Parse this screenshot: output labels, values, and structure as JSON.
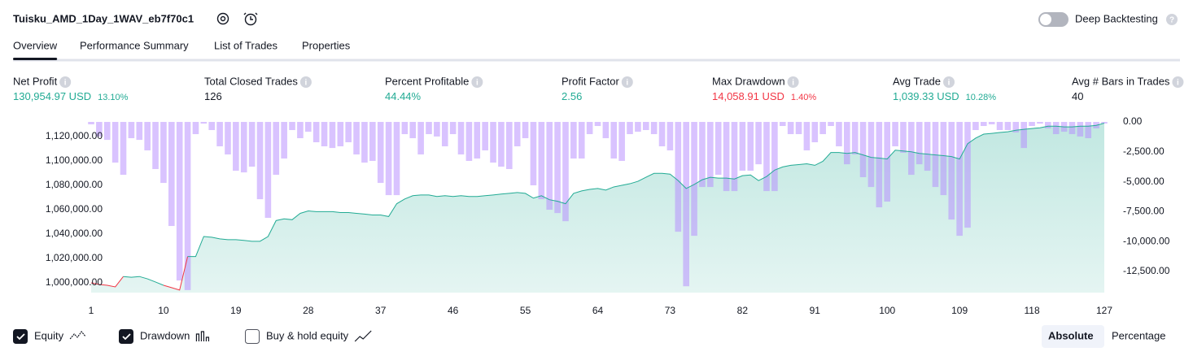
{
  "header": {
    "title": "Tuisku_AMD_1Day_1WAV_eb7f70c1",
    "deep_backtesting": "Deep Backtesting",
    "deep_backtesting_on": false
  },
  "tabs": [
    "Overview",
    "Performance Summary",
    "List of Trades",
    "Properties"
  ],
  "active_tab": 0,
  "stats": [
    {
      "label": "Net Profit",
      "value": "130,954.97 USD",
      "percent": "13.10%",
      "tone": "positive"
    },
    {
      "label": "Total Closed Trades",
      "value": "126",
      "tone": "neutral"
    },
    {
      "label": "Percent Profitable",
      "value": "44.44%",
      "tone": "positive"
    },
    {
      "label": "Profit Factor",
      "value": "2.56",
      "tone": "positive"
    },
    {
      "label": "Max Drawdown",
      "value": "14,058.91 USD",
      "percent": "1.40%",
      "tone": "negative"
    },
    {
      "label": "Avg Trade",
      "value": "1,039.33 USD",
      "percent": "10.28%",
      "tone": "positive"
    },
    {
      "label": "Avg # Bars in Trades",
      "value": "40",
      "tone": "neutral"
    }
  ],
  "chart_data": {
    "type": "line",
    "x": [
      1,
      2,
      3,
      4,
      5,
      6,
      7,
      8,
      9,
      10,
      11,
      12,
      13,
      14,
      15,
      16,
      17,
      18,
      19,
      20,
      21,
      22,
      23,
      24,
      25,
      26,
      27,
      28,
      29,
      30,
      31,
      32,
      33,
      34,
      35,
      36,
      37,
      38,
      39,
      40,
      41,
      42,
      43,
      44,
      45,
      46,
      47,
      48,
      49,
      50,
      51,
      52,
      53,
      54,
      55,
      56,
      57,
      58,
      59,
      60,
      61,
      62,
      63,
      64,
      65,
      66,
      67,
      68,
      69,
      70,
      71,
      72,
      73,
      74,
      75,
      76,
      77,
      78,
      79,
      80,
      81,
      82,
      83,
      84,
      85,
      86,
      87,
      88,
      89,
      90,
      91,
      92,
      93,
      94,
      95,
      96,
      97,
      98,
      99,
      100,
      101,
      102,
      103,
      104,
      105,
      106,
      107,
      108,
      109,
      110,
      111,
      112,
      113,
      114,
      115,
      116,
      117,
      118,
      119,
      120,
      121,
      122,
      123,
      124,
      125,
      126,
      127
    ],
    "series": [
      {
        "name": "Equity",
        "checked": true,
        "color": "#22ab94",
        "negative_color": "#f23645",
        "values": [
          1000000,
          998700,
          998000,
          996700,
          1005200,
          1004600,
          1005200,
          1003300,
          1000700,
          998000,
          996100,
          994100,
          1021600,
          1021600,
          1038000,
          1037400,
          1036100,
          1035400,
          1035400,
          1034800,
          1034100,
          1034100,
          1038000,
          1051100,
          1052500,
          1051800,
          1057000,
          1059000,
          1058400,
          1058400,
          1058400,
          1057700,
          1057700,
          1057000,
          1056400,
          1055700,
          1055700,
          1054400,
          1064900,
          1068800,
          1071500,
          1072100,
          1072100,
          1070800,
          1071500,
          1070800,
          1071500,
          1070800,
          1070800,
          1071500,
          1072100,
          1072800,
          1073400,
          1074100,
          1073400,
          1069500,
          1071500,
          1068200,
          1066900,
          1064900,
          1073400,
          1075400,
          1076700,
          1077400,
          1076100,
          1078700,
          1080000,
          1081300,
          1083300,
          1086600,
          1089800,
          1089800,
          1089200,
          1083900,
          1077400,
          1080700,
          1084600,
          1086600,
          1085900,
          1085900,
          1085200,
          1087900,
          1088500,
          1083900,
          1087200,
          1092500,
          1095100,
          1096400,
          1097000,
          1097700,
          1096400,
          1099700,
          1106900,
          1106900,
          1106200,
          1106900,
          1104900,
          1102900,
          1102300,
          1101600,
          1108800,
          1108200,
          1107500,
          1106200,
          1105600,
          1104900,
          1104300,
          1103600,
          1101600,
          1114100,
          1118700,
          1122000,
          1122600,
          1123300,
          1123900,
          1125200,
          1125900,
          1126600,
          1127200,
          1128500,
          1128500,
          1127900,
          1127900,
          1128500,
          1128500,
          1129200,
          1130955
        ]
      },
      {
        "name": "Drawdown",
        "checked": true,
        "type": "bar",
        "axis": "y2",
        "color": "#b388ff",
        "values": [
          -200,
          -1220,
          -1500,
          -3400,
          -4420,
          -1360,
          -1500,
          -2380,
          -3940,
          -5100,
          -8700,
          -13260,
          -14058.91,
          -1020,
          -140,
          -680,
          -2040,
          -2720,
          -4080,
          -4220,
          -3740,
          -6460,
          -8020,
          -4420,
          -3060,
          -680,
          -1360,
          -820,
          -1700,
          -2040,
          -2180,
          -2040,
          -1700,
          -2720,
          -3400,
          -3260,
          -5100,
          -6120,
          -6120,
          -1020,
          -1360,
          -2720,
          -1020,
          -1220,
          -2040,
          -1020,
          -2720,
          -3260,
          -3060,
          -2380,
          -3400,
          -3740,
          -3940,
          -2040,
          -1360,
          -5300,
          -6460,
          -7340,
          -7620,
          -8300,
          -3060,
          -3060,
          -1020,
          -340,
          -1360,
          -3060,
          -3260,
          -1020,
          -820,
          -680,
          -1020,
          -2040,
          -2380,
          -9180,
          -13740,
          -9520,
          -5440,
          -5440,
          -4420,
          -5780,
          -5780,
          -4080,
          -4080,
          -3540,
          -5780,
          -5780,
          -340,
          -1020,
          -1020,
          -2380,
          -1700,
          -1020,
          -340,
          -2040,
          -3540,
          -2720,
          -4620,
          -5440,
          -7140,
          -6660,
          -2040,
          -2580,
          -4420,
          -3540,
          -4080,
          -5440,
          -6120,
          -8160,
          -9520,
          -8840,
          -680,
          -340,
          -200,
          -680,
          -680,
          -880,
          -2180,
          -340,
          -140,
          -540,
          -1020,
          -820,
          -1020,
          -1220,
          -1360,
          -540,
          -140
        ]
      }
    ],
    "legend_extra": {
      "name": "Buy & hold equity",
      "checked": false
    },
    "xlim": [
      1,
      127
    ],
    "xticks": [
      1,
      10,
      19,
      28,
      37,
      46,
      55,
      64,
      73,
      82,
      91,
      100,
      109,
      118,
      127
    ],
    "ylim": [
      992000,
      1132000
    ],
    "yticks": [
      {
        "value": 1000000,
        "label": "1,000,000.00"
      },
      {
        "value": 1020000,
        "label": "1,020,000.00"
      },
      {
        "value": 1040000,
        "label": "1,040,000.00"
      },
      {
        "value": 1060000,
        "label": "1,060,000.00"
      },
      {
        "value": 1080000,
        "label": "1,080,000.00"
      },
      {
        "value": 1100000,
        "label": "1,100,000.00"
      },
      {
        "value": 1120000,
        "label": "1,120,000.00"
      }
    ],
    "y2lim": [
      -14270,
      0
    ],
    "y2ticks": [
      {
        "value": 0,
        "label": "0.00"
      },
      {
        "value": -2500,
        "label": "-2,500.00"
      },
      {
        "value": -5000,
        "label": "-5,000.00"
      },
      {
        "value": -7500,
        "label": "-7,500.00"
      },
      {
        "value": -10000,
        "label": "-10,000.00"
      },
      {
        "value": -12500,
        "label": "-12,500.00"
      }
    ],
    "grid": false
  },
  "scale_modes": [
    "Absolute",
    "Percentage"
  ],
  "active_scale": 0
}
